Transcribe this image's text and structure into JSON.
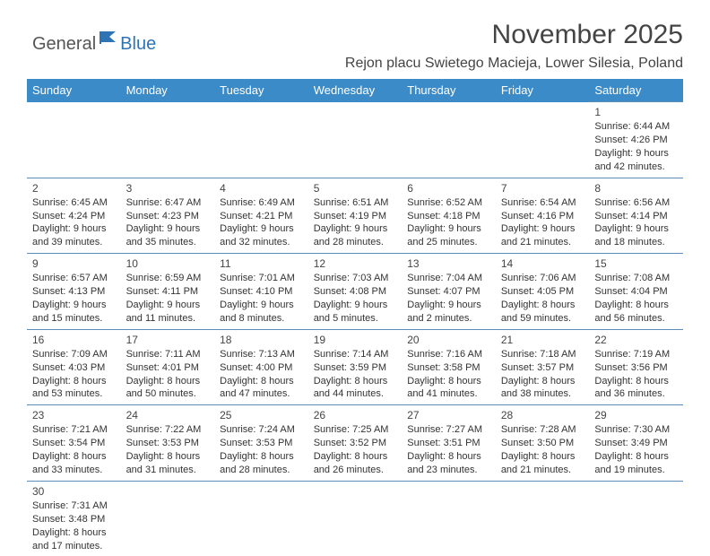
{
  "logo": {
    "general": "General",
    "blue": "Blue"
  },
  "title": "November 2025",
  "location": "Rejon placu Swietego Macieja, Lower Silesia, Poland",
  "dayHeaders": [
    "Sunday",
    "Monday",
    "Tuesday",
    "Wednesday",
    "Thursday",
    "Friday",
    "Saturday"
  ],
  "colors": {
    "headerBg": "#3b8bc9",
    "headerText": "#ffffff",
    "rowBorder": "#5b8db8",
    "bodyText": "#333333",
    "titleText": "#444444",
    "logoGray": "#555555",
    "logoBlue": "#2e74b5",
    "background": "#ffffff"
  },
  "typography": {
    "titleFontSize": 30,
    "locationFontSize": 16,
    "headerFontSize": 13,
    "cellFontSize": 11,
    "dayNumberFontSize": 12,
    "logoFontSize": 20,
    "fontFamily": "Arial"
  },
  "layout": {
    "columns": 7,
    "rowHeightPx": 78,
    "pageWidth": 792,
    "pageHeight": 612
  },
  "startDayOffset": 6,
  "days": [
    {
      "n": "1",
      "sunrise": "6:44 AM",
      "sunset": "4:26 PM",
      "daylight": "9 hours and 42 minutes."
    },
    {
      "n": "2",
      "sunrise": "6:45 AM",
      "sunset": "4:24 PM",
      "daylight": "9 hours and 39 minutes."
    },
    {
      "n": "3",
      "sunrise": "6:47 AM",
      "sunset": "4:23 PM",
      "daylight": "9 hours and 35 minutes."
    },
    {
      "n": "4",
      "sunrise": "6:49 AM",
      "sunset": "4:21 PM",
      "daylight": "9 hours and 32 minutes."
    },
    {
      "n": "5",
      "sunrise": "6:51 AM",
      "sunset": "4:19 PM",
      "daylight": "9 hours and 28 minutes."
    },
    {
      "n": "6",
      "sunrise": "6:52 AM",
      "sunset": "4:18 PM",
      "daylight": "9 hours and 25 minutes."
    },
    {
      "n": "7",
      "sunrise": "6:54 AM",
      "sunset": "4:16 PM",
      "daylight": "9 hours and 21 minutes."
    },
    {
      "n": "8",
      "sunrise": "6:56 AM",
      "sunset": "4:14 PM",
      "daylight": "9 hours and 18 minutes."
    },
    {
      "n": "9",
      "sunrise": "6:57 AM",
      "sunset": "4:13 PM",
      "daylight": "9 hours and 15 minutes."
    },
    {
      "n": "10",
      "sunrise": "6:59 AM",
      "sunset": "4:11 PM",
      "daylight": "9 hours and 11 minutes."
    },
    {
      "n": "11",
      "sunrise": "7:01 AM",
      "sunset": "4:10 PM",
      "daylight": "9 hours and 8 minutes."
    },
    {
      "n": "12",
      "sunrise": "7:03 AM",
      "sunset": "4:08 PM",
      "daylight": "9 hours and 5 minutes."
    },
    {
      "n": "13",
      "sunrise": "7:04 AM",
      "sunset": "4:07 PM",
      "daylight": "9 hours and 2 minutes."
    },
    {
      "n": "14",
      "sunrise": "7:06 AM",
      "sunset": "4:05 PM",
      "daylight": "8 hours and 59 minutes."
    },
    {
      "n": "15",
      "sunrise": "7:08 AM",
      "sunset": "4:04 PM",
      "daylight": "8 hours and 56 minutes."
    },
    {
      "n": "16",
      "sunrise": "7:09 AM",
      "sunset": "4:03 PM",
      "daylight": "8 hours and 53 minutes."
    },
    {
      "n": "17",
      "sunrise": "7:11 AM",
      "sunset": "4:01 PM",
      "daylight": "8 hours and 50 minutes."
    },
    {
      "n": "18",
      "sunrise": "7:13 AM",
      "sunset": "4:00 PM",
      "daylight": "8 hours and 47 minutes."
    },
    {
      "n": "19",
      "sunrise": "7:14 AM",
      "sunset": "3:59 PM",
      "daylight": "8 hours and 44 minutes."
    },
    {
      "n": "20",
      "sunrise": "7:16 AM",
      "sunset": "3:58 PM",
      "daylight": "8 hours and 41 minutes."
    },
    {
      "n": "21",
      "sunrise": "7:18 AM",
      "sunset": "3:57 PM",
      "daylight": "8 hours and 38 minutes."
    },
    {
      "n": "22",
      "sunrise": "7:19 AM",
      "sunset": "3:56 PM",
      "daylight": "8 hours and 36 minutes."
    },
    {
      "n": "23",
      "sunrise": "7:21 AM",
      "sunset": "3:54 PM",
      "daylight": "8 hours and 33 minutes."
    },
    {
      "n": "24",
      "sunrise": "7:22 AM",
      "sunset": "3:53 PM",
      "daylight": "8 hours and 31 minutes."
    },
    {
      "n": "25",
      "sunrise": "7:24 AM",
      "sunset": "3:53 PM",
      "daylight": "8 hours and 28 minutes."
    },
    {
      "n": "26",
      "sunrise": "7:25 AM",
      "sunset": "3:52 PM",
      "daylight": "8 hours and 26 minutes."
    },
    {
      "n": "27",
      "sunrise": "7:27 AM",
      "sunset": "3:51 PM",
      "daylight": "8 hours and 23 minutes."
    },
    {
      "n": "28",
      "sunrise": "7:28 AM",
      "sunset": "3:50 PM",
      "daylight": "8 hours and 21 minutes."
    },
    {
      "n": "29",
      "sunrise": "7:30 AM",
      "sunset": "3:49 PM",
      "daylight": "8 hours and 19 minutes."
    },
    {
      "n": "30",
      "sunrise": "7:31 AM",
      "sunset": "3:48 PM",
      "daylight": "8 hours and 17 minutes."
    }
  ]
}
